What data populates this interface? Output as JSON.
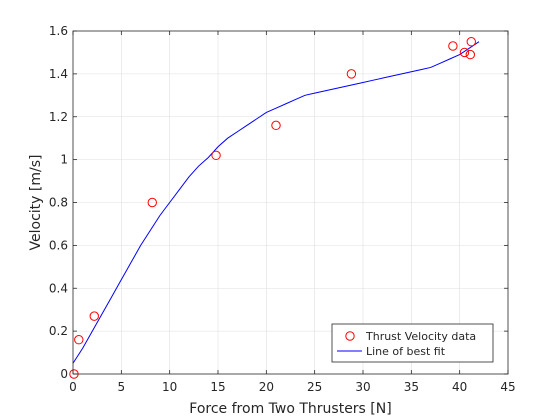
{
  "chart_data": {
    "type": "scatter",
    "title": "",
    "xlabel": "Force from Two Thrusters [N]",
    "ylabel": "Velocity [m/s]",
    "xlim": [
      0,
      45
    ],
    "ylim": [
      0,
      1.6
    ],
    "x_ticks": [
      0,
      5,
      10,
      15,
      20,
      25,
      30,
      35,
      40,
      45
    ],
    "y_ticks": [
      0,
      0.2,
      0.4,
      0.6,
      0.8,
      1.0,
      1.2,
      1.4,
      1.6
    ],
    "x_tick_labels": [
      "0",
      "5",
      "10",
      "15",
      "20",
      "25",
      "30",
      "35",
      "40",
      "45"
    ],
    "y_tick_labels": [
      "0",
      "0.2",
      "0.4",
      "0.6",
      "0.8",
      "1",
      "1.2",
      "1.4",
      "1.6"
    ],
    "grid": true,
    "legend_position": "bottom-right",
    "series": [
      {
        "name": "Thrust Velocity data",
        "kind": "scatter",
        "marker": "open-circle",
        "color": "#ff0000",
        "points": [
          [
            0.1,
            0.0
          ],
          [
            0.6,
            0.16
          ],
          [
            2.2,
            0.27
          ],
          [
            8.2,
            0.8
          ],
          [
            14.8,
            1.02
          ],
          [
            21.0,
            1.16
          ],
          [
            28.8,
            1.4
          ],
          [
            39.3,
            1.53
          ],
          [
            40.5,
            1.5
          ],
          [
            41.1,
            1.49
          ],
          [
            41.2,
            1.55
          ]
        ]
      },
      {
        "name": "Line of best fit",
        "kind": "line",
        "color": "#0000ff",
        "points": [
          [
            0,
            0.05
          ],
          [
            1,
            0.12
          ],
          [
            2,
            0.2
          ],
          [
            3,
            0.28
          ],
          [
            4,
            0.36
          ],
          [
            5,
            0.44
          ],
          [
            6,
            0.52
          ],
          [
            7,
            0.6
          ],
          [
            8,
            0.67
          ],
          [
            9,
            0.74
          ],
          [
            10,
            0.8
          ],
          [
            11,
            0.86
          ],
          [
            12,
            0.92
          ],
          [
            13,
            0.97
          ],
          [
            14,
            1.01
          ],
          [
            15,
            1.06
          ],
          [
            16,
            1.1
          ],
          [
            17,
            1.13
          ],
          [
            18,
            1.16
          ],
          [
            19,
            1.19
          ],
          [
            20,
            1.22
          ],
          [
            21,
            1.24
          ],
          [
            22,
            1.26
          ],
          [
            23,
            1.28
          ],
          [
            24,
            1.3
          ],
          [
            25,
            1.31
          ],
          [
            26,
            1.32
          ],
          [
            27,
            1.33
          ],
          [
            28,
            1.34
          ],
          [
            29,
            1.35
          ],
          [
            30,
            1.36
          ],
          [
            31,
            1.37
          ],
          [
            32,
            1.38
          ],
          [
            33,
            1.39
          ],
          [
            34,
            1.4
          ],
          [
            35,
            1.41
          ],
          [
            36,
            1.42
          ],
          [
            37,
            1.43
          ],
          [
            38,
            1.45
          ],
          [
            39,
            1.47
          ],
          [
            40,
            1.49
          ],
          [
            41,
            1.52
          ],
          [
            42,
            1.55
          ]
        ]
      }
    ]
  }
}
